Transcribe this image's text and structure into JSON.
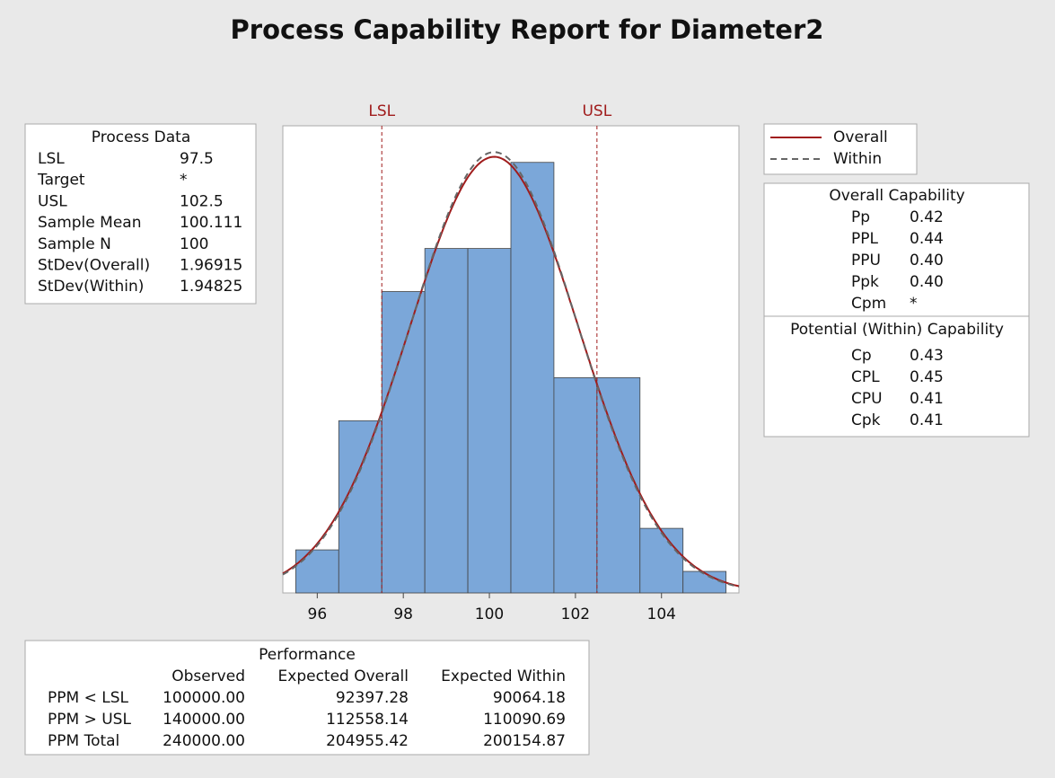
{
  "chart_data": {
    "type": "histogram",
    "title": "Process Capability Report for Diameter2",
    "bins": [
      95.5,
      96.5,
      97.5,
      98.5,
      99.5,
      100.5,
      101.5,
      102.5,
      103.5,
      104.5,
      105.5
    ],
    "values": [
      2,
      8,
      14,
      16,
      16,
      20,
      10,
      10,
      3,
      1
    ],
    "color": "#7ba7d9",
    "xlim": [
      95.2,
      105.8
    ],
    "xticks": [
      96,
      98,
      100,
      102,
      104
    ],
    "ylim": [
      0,
      21.7
    ],
    "spec_limits": [
      {
        "label": "LSL",
        "value": 97.5
      },
      {
        "label": "USL",
        "value": 102.5
      }
    ],
    "spec_color": "#a01c1c",
    "series": [
      {
        "name": "Overall",
        "color": "#a01c1c",
        "mean": 100.111,
        "stdev": 1.96915,
        "dashed": false
      },
      {
        "name": "Within",
        "color": "#666666",
        "mean": 100.111,
        "stdev": 1.94825,
        "dashed": true
      }
    ]
  },
  "process_data": {
    "title": "Process Data",
    "rows": [
      [
        "LSL",
        "97.5"
      ],
      [
        "Target",
        "*"
      ],
      [
        "USL",
        "102.5"
      ],
      [
        "Sample Mean",
        "100.111"
      ],
      [
        "Sample N",
        "100"
      ],
      [
        "StDev(Overall)",
        "1.96915"
      ],
      [
        "StDev(Within)",
        "1.94825"
      ]
    ]
  },
  "overall_capability": {
    "title": "Overall Capability",
    "rows": [
      [
        "Pp",
        "0.42"
      ],
      [
        "PPL",
        "0.44"
      ],
      [
        "PPU",
        "0.40"
      ],
      [
        "Ppk",
        "0.40"
      ],
      [
        "Cpm",
        "*"
      ]
    ]
  },
  "potential_capability": {
    "title": "Potential (Within) Capability",
    "rows": [
      [
        "Cp",
        "0.43"
      ],
      [
        "CPL",
        "0.45"
      ],
      [
        "CPU",
        "0.41"
      ],
      [
        "Cpk",
        "0.41"
      ]
    ]
  },
  "performance": {
    "title": "Performance",
    "columns": [
      "Observed",
      "Expected Overall",
      "Expected Within"
    ],
    "rows": [
      [
        "PPM < LSL",
        "100000.00",
        "92397.28",
        "90064.18"
      ],
      [
        "PPM > USL",
        "140000.00",
        "112558.14",
        "110090.69"
      ],
      [
        "PPM Total",
        "240000.00",
        "204955.42",
        "200154.87"
      ]
    ]
  }
}
